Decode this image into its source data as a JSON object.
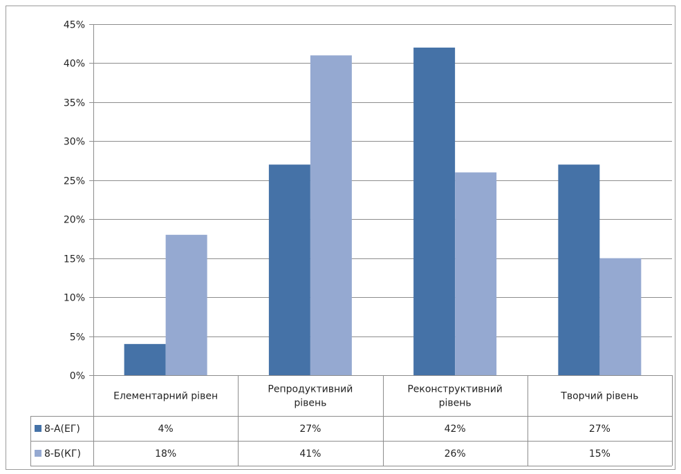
{
  "chart_data": {
    "type": "bar",
    "categories": [
      "Елементарний рівен",
      "Репродуктивний рівень",
      "Реконструктивний рівень",
      "Творчий рівень"
    ],
    "category_lines": [
      [
        "Елементарний рівен"
      ],
      [
        "Репродуктивний",
        "рівень"
      ],
      [
        "Реконструктивний",
        "рівень"
      ],
      [
        "Творчий рівень"
      ]
    ],
    "series": [
      {
        "name": "8-А(ЕГ)",
        "values": [
          4,
          27,
          42,
          27
        ],
        "labels": [
          "4%",
          "27%",
          "42%",
          "27%"
        ],
        "color": "#4572A7"
      },
      {
        "name": "8-Б(КГ)",
        "values": [
          18,
          41,
          26,
          15
        ],
        "labels": [
          "18%",
          "41%",
          "26%",
          "15%"
        ],
        "color": "#95A9D1"
      }
    ],
    "y_ticks": [
      "0%",
      "5%",
      "10%",
      "15%",
      "20%",
      "25%",
      "30%",
      "35%",
      "40%",
      "45%"
    ],
    "ylim": [
      0,
      45
    ],
    "grid": true,
    "legend": "data-table",
    "colors": {
      "gridline": "#8c8c8c",
      "axis": "#8c8c8c",
      "frame": "#9a9a9a"
    }
  }
}
